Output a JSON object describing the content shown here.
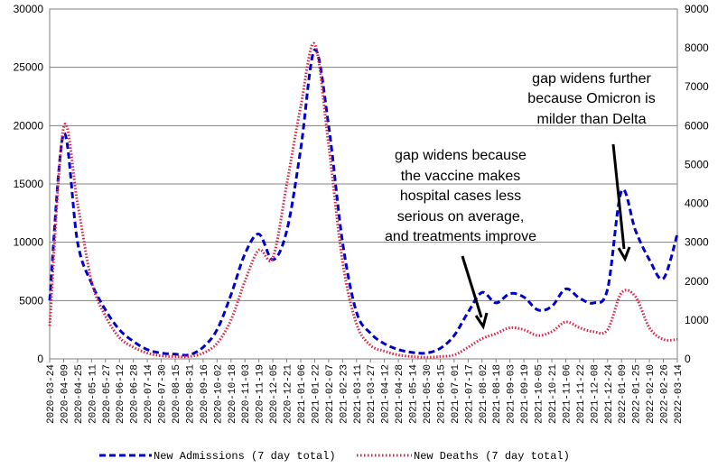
{
  "chart_data": {
    "type": "line",
    "title": "",
    "xlabel": "",
    "ylabel_left": "",
    "ylabel_right": "",
    "ylim_left": [
      0,
      30000
    ],
    "ylim_right": [
      0,
      9000
    ],
    "yticks_left": [
      "0",
      "5000",
      "10000",
      "15000",
      "20000",
      "25000",
      "30000"
    ],
    "yticks_right": [
      "0",
      "1000",
      "2000",
      "3000",
      "4000",
      "5000",
      "6000",
      "7000",
      "8000",
      "9000"
    ],
    "grid": true,
    "legend_position": "bottom",
    "categories": [
      "2020-03-24",
      "2020-04-09",
      "2020-04-25",
      "2020-05-11",
      "2020-05-27",
      "2020-06-12",
      "2020-06-28",
      "2020-07-14",
      "2020-07-30",
      "2020-08-15",
      "2020-08-31",
      "2020-09-16",
      "2020-10-02",
      "2020-10-18",
      "2020-11-03",
      "2020-11-19",
      "2020-12-05",
      "2020-12-21",
      "2021-01-06",
      "2021-01-22",
      "2021-02-07",
      "2021-02-23",
      "2021-03-11",
      "2021-03-27",
      "2021-04-12",
      "2021-04-28",
      "2021-05-14",
      "2021-05-30",
      "2021-06-15",
      "2021-07-01",
      "2021-07-17",
      "2021-08-02",
      "2021-08-18",
      "2021-09-03",
      "2021-09-19",
      "2021-10-05",
      "2021-10-21",
      "2021-11-06",
      "2021-11-22",
      "2021-12-08",
      "2021-12-24",
      "2022-01-09",
      "2022-01-25",
      "2022-02-10",
      "2022-02-26",
      "2022-03-14"
    ],
    "series": [
      {
        "name": "New Admissions (7 day total)",
        "axis": "left",
        "color": "#0000cc",
        "style": "dashed",
        "values": [
          5000,
          19300,
          10000,
          6500,
          4200,
          2500,
          1500,
          800,
          500,
          400,
          350,
          1000,
          2500,
          5500,
          9000,
          10700,
          8500,
          11000,
          18000,
          26500,
          20000,
          10000,
          4000,
          2200,
          1300,
          800,
          550,
          500,
          900,
          2000,
          4000,
          5700,
          4800,
          5600,
          5300,
          4200,
          4500,
          6000,
          5200,
          4800,
          6000,
          14400,
          11000,
          8500,
          6900,
          10700
        ]
      },
      {
        "name": "New Deaths (7 day total)",
        "axis": "right",
        "color": "#dd2244",
        "style": "dotted",
        "values": [
          850,
          5950,
          4000,
          2000,
          1100,
          550,
          300,
          150,
          80,
          60,
          60,
          150,
          400,
          1000,
          2000,
          2800,
          2600,
          4500,
          6500,
          8100,
          5500,
          2500,
          900,
          350,
          200,
          100,
          60,
          40,
          60,
          100,
          300,
          520,
          650,
          800,
          750,
          600,
          700,
          950,
          800,
          700,
          750,
          1700,
          1600,
          800,
          500,
          500
        ]
      }
    ],
    "annotations": [
      {
        "lines": [
          "gap widens because",
          "the vaccine makes",
          "hospital cases less",
          "serious on average,",
          "and treatments improve"
        ]
      },
      {
        "lines": [
          "gap widens further",
          "because Omicron is",
          "milder than Delta"
        ]
      }
    ],
    "legend": [
      "New Admissions (7 day total)",
      "New Deaths (7 day total)"
    ]
  }
}
